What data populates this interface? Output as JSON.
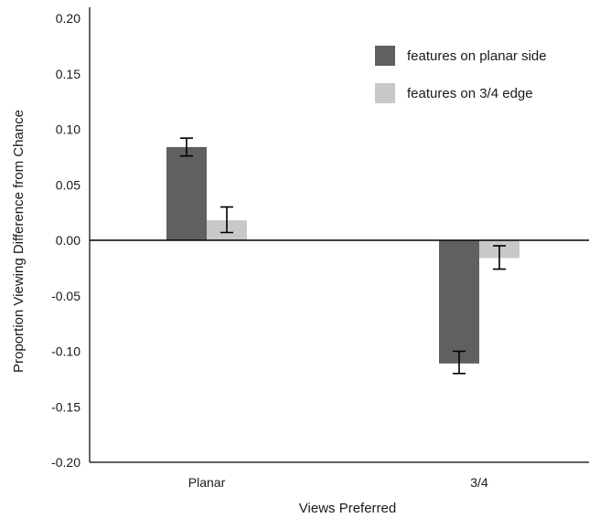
{
  "chart_data": {
    "type": "bar",
    "title": "",
    "xlabel": "Views Preferred",
    "ylabel": "Proportion Viewing Difference from Chance",
    "categories": [
      "Planar",
      "3/4"
    ],
    "series": [
      {
        "name": "features on planar side",
        "color": "#606060",
        "values": [
          0.084,
          -0.111
        ],
        "error": [
          [
            0.076,
            0.092
          ],
          [
            -0.12,
            -0.1
          ]
        ]
      },
      {
        "name": "features on 3/4 edge",
        "color": "#c8c8c8",
        "values": [
          0.018,
          -0.016
        ],
        "error": [
          [
            0.007,
            0.03
          ],
          [
            -0.026,
            -0.005
          ]
        ]
      }
    ],
    "ylim": [
      -0.2,
      0.2
    ],
    "yticks": [
      "0.20",
      "0.15",
      "0.10",
      "0.05",
      "0.00",
      "-0.05",
      "-0.10",
      "-0.15",
      "-0.20"
    ],
    "legend_position": "top-right",
    "grid": false
  }
}
